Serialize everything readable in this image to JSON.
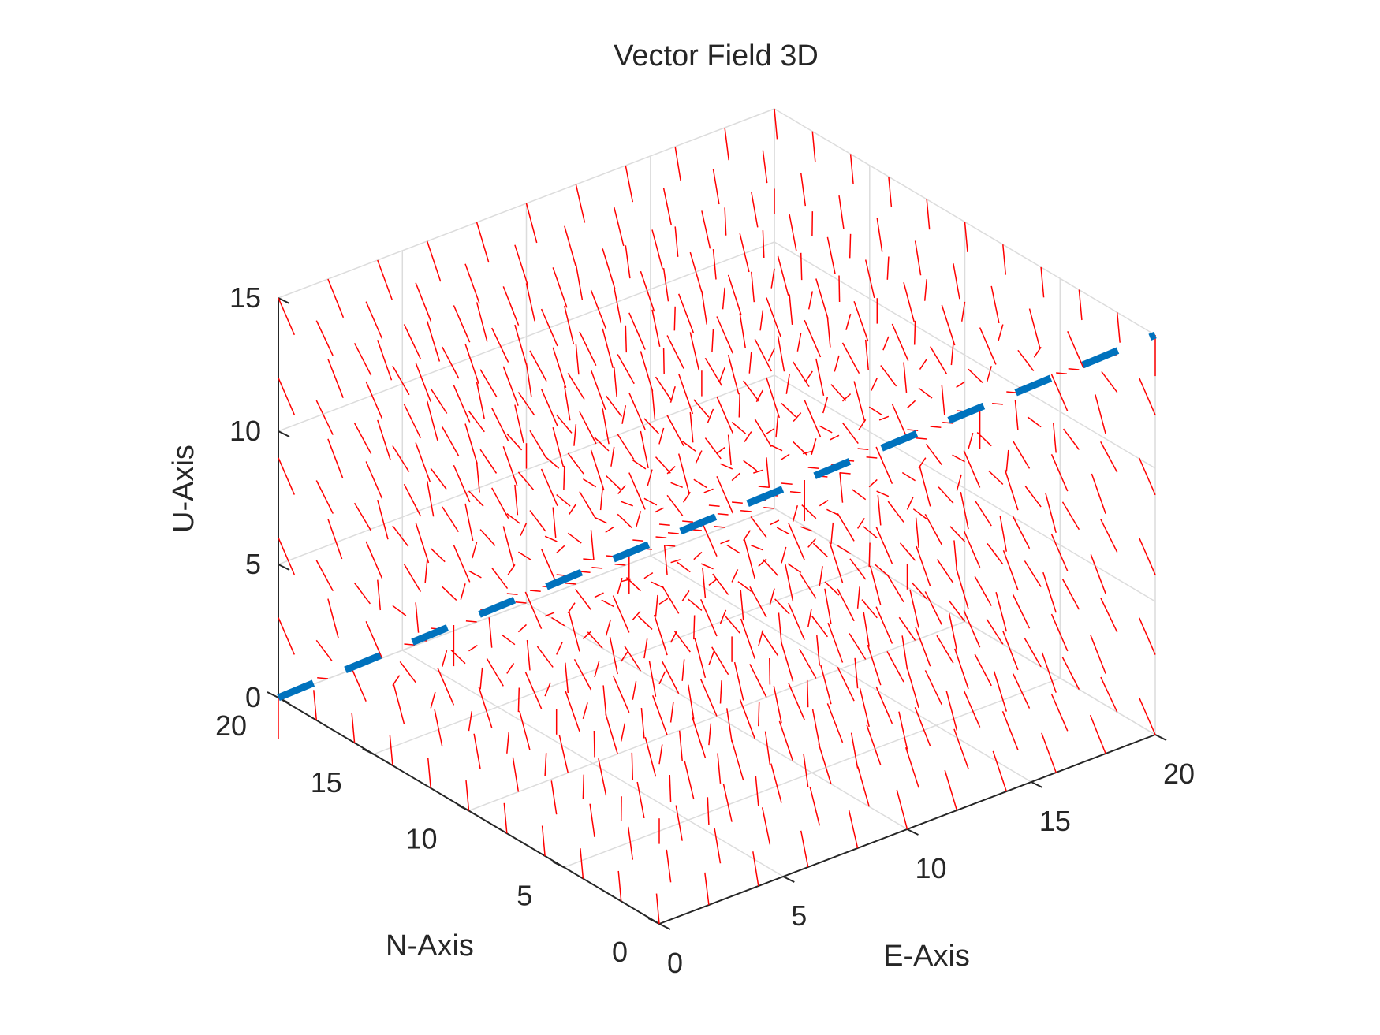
{
  "chart_data": {
    "type": "quiver3d",
    "title": "Vector Field 3D",
    "xlabel": "E-Axis",
    "ylabel": "N-Axis",
    "zlabel": "U-Axis",
    "xlim": [
      0,
      20
    ],
    "ylim": [
      0,
      20
    ],
    "zlim": [
      0,
      15
    ],
    "xticks": [
      "0",
      "5",
      "10",
      "15",
      "20"
    ],
    "yticks": [
      "0",
      "5",
      "10",
      "15",
      "20"
    ],
    "zticks": [
      "0",
      "5",
      "10",
      "15"
    ],
    "grid": true,
    "view": "3d-azimuth-30",
    "field": {
      "grid_x": [
        0,
        2,
        4,
        6,
        8,
        10,
        12,
        14,
        16,
        18,
        20
      ],
      "grid_y": [
        0,
        2,
        4,
        6,
        8,
        10,
        12,
        14,
        16,
        18,
        20
      ],
      "grid_z": [
        0,
        3,
        6,
        9,
        12,
        15
      ],
      "attractor": "diagonal line from (0,20,0) to (20,0,15)",
      "color": "#ff0000"
    },
    "series": [
      {
        "type": "line",
        "style": "dashed",
        "color": "#0072bd",
        "x": [
          0,
          20
        ],
        "y": [
          20,
          0
        ],
        "z": [
          0,
          15
        ]
      }
    ]
  }
}
